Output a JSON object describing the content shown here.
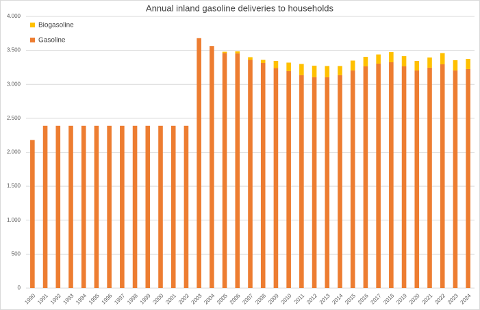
{
  "chart_data": {
    "type": "bar",
    "stacked": true,
    "title": "Annual inland gasoline deliveries to households",
    "categories": [
      "1990",
      "1991",
      "1992",
      "1993",
      "1994",
      "1995",
      "1996",
      "1997",
      "1998",
      "1999",
      "2000",
      "2001",
      "2002",
      "2003",
      "2004",
      "2005",
      "2006",
      "2007",
      "2008",
      "2009",
      "2010",
      "2011",
      "2012",
      "2013",
      "2014",
      "2015",
      "2016",
      "2017",
      "2018",
      "2019",
      "2020",
      "2021",
      "2022",
      "2023",
      "2024"
    ],
    "series": [
      {
        "name": "Gasoline",
        "color": "#ed7d31",
        "values": [
          2180,
          2390,
          2390,
          2390,
          2390,
          2390,
          2390,
          2390,
          2390,
          2390,
          2390,
          2390,
          2390,
          3680,
          3565,
          3460,
          3455,
          3360,
          3315,
          3240,
          3195,
          3135,
          3105,
          3105,
          3135,
          3205,
          3265,
          3305,
          3325,
          3265,
          3205,
          3245,
          3295,
          3205,
          3225
        ]
      },
      {
        "name": "Biogasoline",
        "color": "#ffc000",
        "values": [
          0,
          0,
          0,
          0,
          0,
          0,
          0,
          0,
          0,
          0,
          0,
          0,
          0,
          0,
          0,
          20,
          30,
          40,
          45,
          105,
          125,
          165,
          170,
          165,
          135,
          145,
          140,
          135,
          150,
          150,
          140,
          150,
          165,
          150,
          150
        ]
      }
    ],
    "ylim": [
      0,
      4000
    ],
    "yticks": [
      0,
      500,
      {
        "value": 1000,
        "label": "1.000"
      },
      {
        "value": 1500,
        "label": "1.500"
      },
      {
        "value": 2000,
        "label": "2.000"
      },
      {
        "value": 2500,
        "label": "2.500"
      },
      {
        "value": 3000,
        "label": "3.000"
      },
      {
        "value": 3500,
        "label": "3.500"
      },
      {
        "value": 4000,
        "label": "4.000"
      }
    ],
    "grid": true,
    "legend": "top-left"
  }
}
